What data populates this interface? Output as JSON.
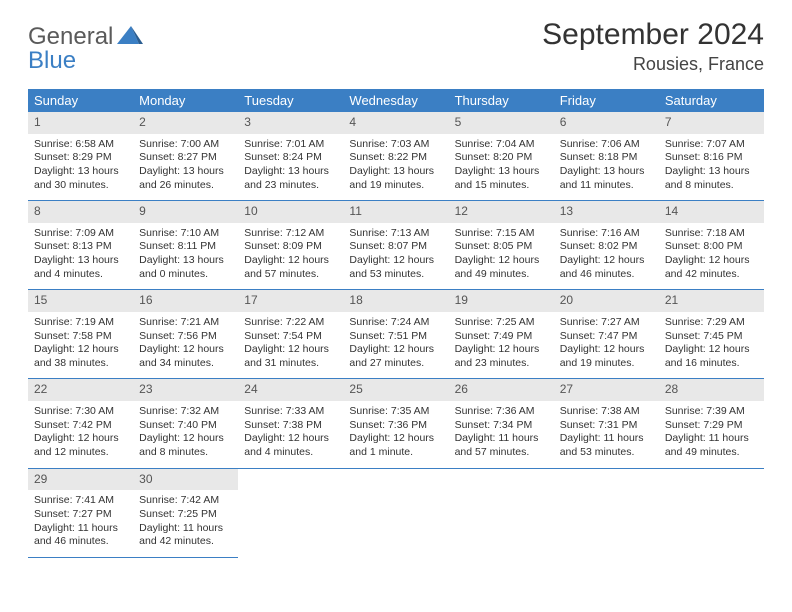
{
  "logo": {
    "line1": "General",
    "line2": "Blue"
  },
  "title": "September 2024",
  "location": "Rousies, France",
  "colors": {
    "header_bg": "#3b7fc4",
    "header_fg": "#ffffff",
    "daynum_bg": "#e8e8e8",
    "cell_border": "#3b7fc4",
    "text": "#333333"
  },
  "weekdays": [
    "Sunday",
    "Monday",
    "Tuesday",
    "Wednesday",
    "Thursday",
    "Friday",
    "Saturday"
  ],
  "weeks": [
    [
      {
        "n": "1",
        "sr": "Sunrise: 6:58 AM",
        "ss": "Sunset: 8:29 PM",
        "dl": "Daylight: 13 hours and 30 minutes."
      },
      {
        "n": "2",
        "sr": "Sunrise: 7:00 AM",
        "ss": "Sunset: 8:27 PM",
        "dl": "Daylight: 13 hours and 26 minutes."
      },
      {
        "n": "3",
        "sr": "Sunrise: 7:01 AM",
        "ss": "Sunset: 8:24 PM",
        "dl": "Daylight: 13 hours and 23 minutes."
      },
      {
        "n": "4",
        "sr": "Sunrise: 7:03 AM",
        "ss": "Sunset: 8:22 PM",
        "dl": "Daylight: 13 hours and 19 minutes."
      },
      {
        "n": "5",
        "sr": "Sunrise: 7:04 AM",
        "ss": "Sunset: 8:20 PM",
        "dl": "Daylight: 13 hours and 15 minutes."
      },
      {
        "n": "6",
        "sr": "Sunrise: 7:06 AM",
        "ss": "Sunset: 8:18 PM",
        "dl": "Daylight: 13 hours and 11 minutes."
      },
      {
        "n": "7",
        "sr": "Sunrise: 7:07 AM",
        "ss": "Sunset: 8:16 PM",
        "dl": "Daylight: 13 hours and 8 minutes."
      }
    ],
    [
      {
        "n": "8",
        "sr": "Sunrise: 7:09 AM",
        "ss": "Sunset: 8:13 PM",
        "dl": "Daylight: 13 hours and 4 minutes."
      },
      {
        "n": "9",
        "sr": "Sunrise: 7:10 AM",
        "ss": "Sunset: 8:11 PM",
        "dl": "Daylight: 13 hours and 0 minutes."
      },
      {
        "n": "10",
        "sr": "Sunrise: 7:12 AM",
        "ss": "Sunset: 8:09 PM",
        "dl": "Daylight: 12 hours and 57 minutes."
      },
      {
        "n": "11",
        "sr": "Sunrise: 7:13 AM",
        "ss": "Sunset: 8:07 PM",
        "dl": "Daylight: 12 hours and 53 minutes."
      },
      {
        "n": "12",
        "sr": "Sunrise: 7:15 AM",
        "ss": "Sunset: 8:05 PM",
        "dl": "Daylight: 12 hours and 49 minutes."
      },
      {
        "n": "13",
        "sr": "Sunrise: 7:16 AM",
        "ss": "Sunset: 8:02 PM",
        "dl": "Daylight: 12 hours and 46 minutes."
      },
      {
        "n": "14",
        "sr": "Sunrise: 7:18 AM",
        "ss": "Sunset: 8:00 PM",
        "dl": "Daylight: 12 hours and 42 minutes."
      }
    ],
    [
      {
        "n": "15",
        "sr": "Sunrise: 7:19 AM",
        "ss": "Sunset: 7:58 PM",
        "dl": "Daylight: 12 hours and 38 minutes."
      },
      {
        "n": "16",
        "sr": "Sunrise: 7:21 AM",
        "ss": "Sunset: 7:56 PM",
        "dl": "Daylight: 12 hours and 34 minutes."
      },
      {
        "n": "17",
        "sr": "Sunrise: 7:22 AM",
        "ss": "Sunset: 7:54 PM",
        "dl": "Daylight: 12 hours and 31 minutes."
      },
      {
        "n": "18",
        "sr": "Sunrise: 7:24 AM",
        "ss": "Sunset: 7:51 PM",
        "dl": "Daylight: 12 hours and 27 minutes."
      },
      {
        "n": "19",
        "sr": "Sunrise: 7:25 AM",
        "ss": "Sunset: 7:49 PM",
        "dl": "Daylight: 12 hours and 23 minutes."
      },
      {
        "n": "20",
        "sr": "Sunrise: 7:27 AM",
        "ss": "Sunset: 7:47 PM",
        "dl": "Daylight: 12 hours and 19 minutes."
      },
      {
        "n": "21",
        "sr": "Sunrise: 7:29 AM",
        "ss": "Sunset: 7:45 PM",
        "dl": "Daylight: 12 hours and 16 minutes."
      }
    ],
    [
      {
        "n": "22",
        "sr": "Sunrise: 7:30 AM",
        "ss": "Sunset: 7:42 PM",
        "dl": "Daylight: 12 hours and 12 minutes."
      },
      {
        "n": "23",
        "sr": "Sunrise: 7:32 AM",
        "ss": "Sunset: 7:40 PM",
        "dl": "Daylight: 12 hours and 8 minutes."
      },
      {
        "n": "24",
        "sr": "Sunrise: 7:33 AM",
        "ss": "Sunset: 7:38 PM",
        "dl": "Daylight: 12 hours and 4 minutes."
      },
      {
        "n": "25",
        "sr": "Sunrise: 7:35 AM",
        "ss": "Sunset: 7:36 PM",
        "dl": "Daylight: 12 hours and 1 minute."
      },
      {
        "n": "26",
        "sr": "Sunrise: 7:36 AM",
        "ss": "Sunset: 7:34 PM",
        "dl": "Daylight: 11 hours and 57 minutes."
      },
      {
        "n": "27",
        "sr": "Sunrise: 7:38 AM",
        "ss": "Sunset: 7:31 PM",
        "dl": "Daylight: 11 hours and 53 minutes."
      },
      {
        "n": "28",
        "sr": "Sunrise: 7:39 AM",
        "ss": "Sunset: 7:29 PM",
        "dl": "Daylight: 11 hours and 49 minutes."
      }
    ],
    [
      {
        "n": "29",
        "sr": "Sunrise: 7:41 AM",
        "ss": "Sunset: 7:27 PM",
        "dl": "Daylight: 11 hours and 46 minutes."
      },
      {
        "n": "30",
        "sr": "Sunrise: 7:42 AM",
        "ss": "Sunset: 7:25 PM",
        "dl": "Daylight: 11 hours and 42 minutes."
      },
      null,
      null,
      null,
      null,
      null
    ]
  ]
}
